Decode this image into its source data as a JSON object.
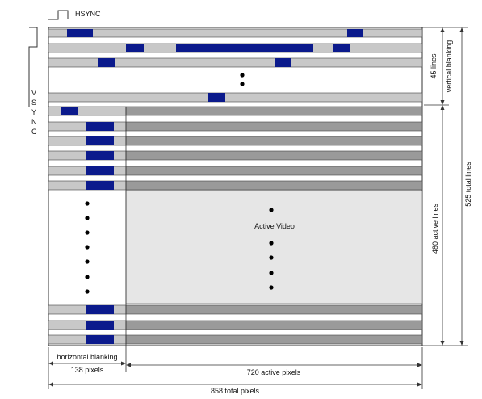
{
  "labels": {
    "hsync": "HSYNC",
    "vsync_letters": [
      "V",
      "S",
      "Y",
      "N",
      "C"
    ],
    "active_video": "Active Video",
    "horizontal_blanking": "horizontal blanking",
    "blanking_pixels": "138 pixels",
    "active_pixels": "720 active pixels",
    "total_pixels": "858 total pixels",
    "vertical_blanking_count": "45 lines",
    "vertical_blanking": "vertical blanking",
    "active_lines": "480 active lines",
    "total_lines": "525 total lines"
  },
  "timing": {
    "blanking_pixels": 138,
    "active_pixels": 720,
    "total_pixels": 858,
    "blanking_lines": 45,
    "active_lines": 480,
    "total_lines": 525
  },
  "colors": {
    "blanking_line": "#c8c8c8",
    "active_line": "#9a9a9a",
    "active_region": "#e6e6e6",
    "sync_pulse": "#0b1a8c",
    "outline": "#333333"
  }
}
